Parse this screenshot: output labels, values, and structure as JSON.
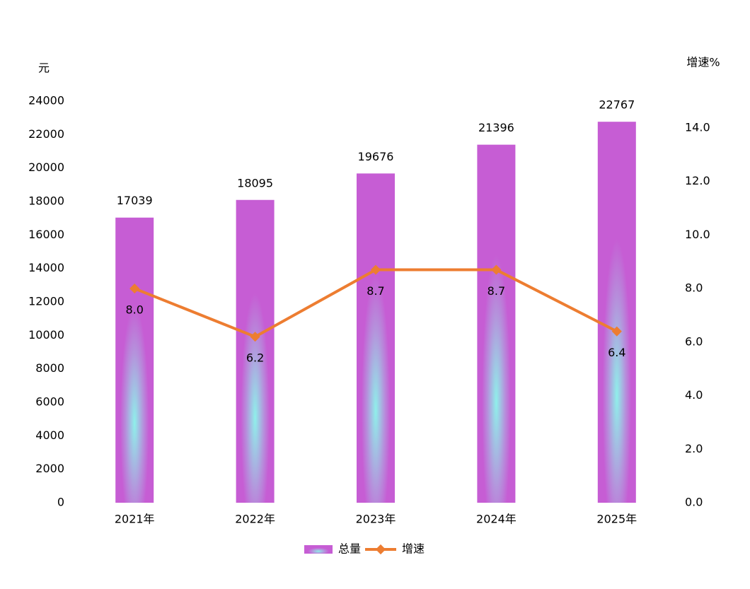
{
  "chart_data": {
    "type": "bar-line",
    "y_label": "元",
    "y2_label": "增速%",
    "categories": [
      "2021年",
      "2022年",
      "2023年",
      "2024年",
      "2025年"
    ],
    "series": [
      {
        "name": "总量",
        "type": "bar",
        "color": "#c65dd4",
        "values": [
          17039,
          18095,
          19676,
          21396,
          22767
        ]
      },
      {
        "name": "增速",
        "type": "line",
        "axis": "y2",
        "color": "#ed7d31",
        "values": [
          8.0,
          6.2,
          8.7,
          8.7,
          6.4
        ],
        "value_labels": [
          "8.0",
          "6.2",
          "8.7",
          "8.7",
          "6.4"
        ]
      }
    ],
    "ylim": [
      0,
      24000
    ],
    "yticks": [
      0,
      2000,
      4000,
      6000,
      8000,
      10000,
      12000,
      14000,
      16000,
      18000,
      20000,
      22000,
      24000
    ],
    "y2lim": [
      0,
      15
    ],
    "y2ticks": [
      {
        "value": 0,
        "label": "0.0"
      },
      {
        "value": 2,
        "label": "2.0"
      },
      {
        "value": 4,
        "label": "4.0"
      },
      {
        "value": 6,
        "label": "6.0"
      },
      {
        "value": 8,
        "label": "8.0"
      },
      {
        "value": 10,
        "label": "10.0"
      },
      {
        "value": 12,
        "label": "12.0"
      },
      {
        "value": 14,
        "label": "14.0"
      }
    ],
    "legend": "bottom"
  }
}
